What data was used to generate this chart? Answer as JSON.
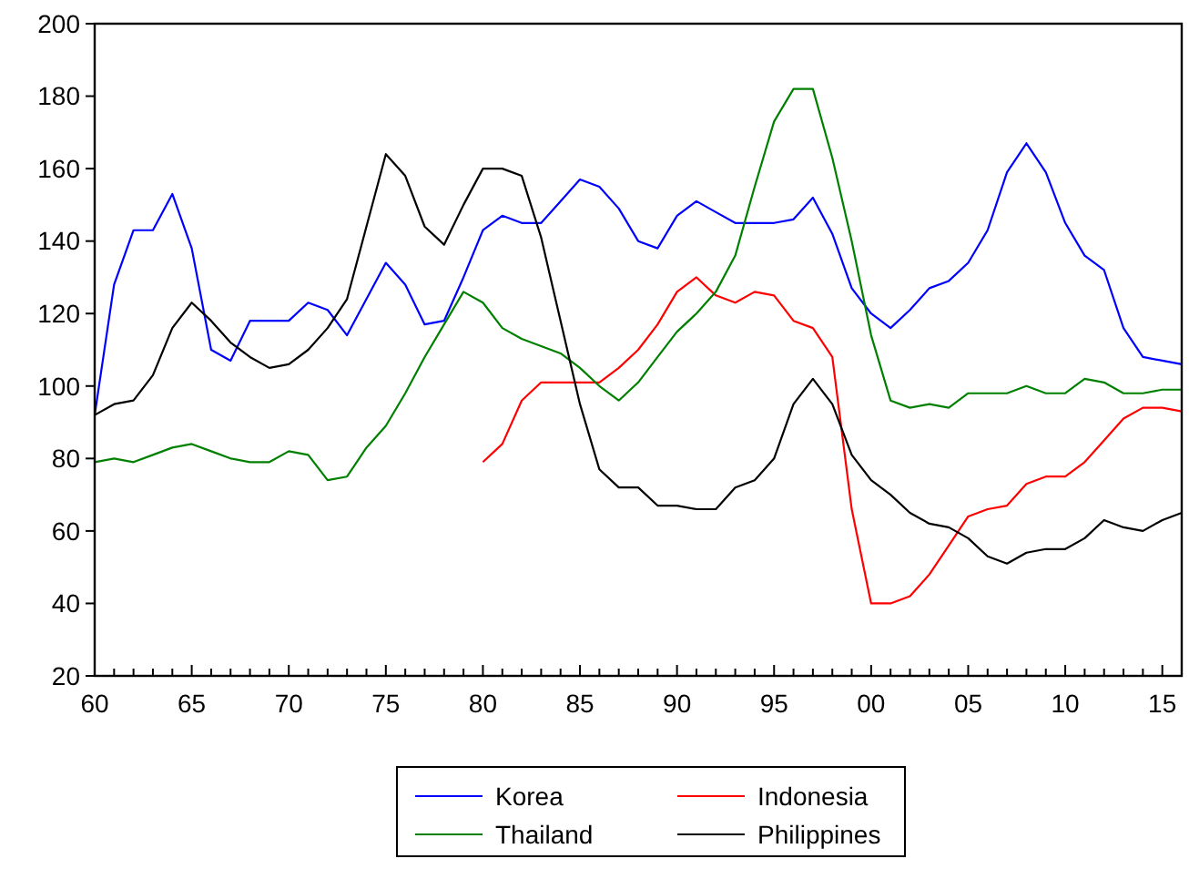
{
  "chart_data": {
    "type": "line",
    "x": [
      1960,
      1961,
      1962,
      1963,
      1964,
      1965,
      1966,
      1967,
      1968,
      1969,
      1970,
      1971,
      1972,
      1973,
      1974,
      1975,
      1976,
      1977,
      1978,
      1979,
      1980,
      1981,
      1982,
      1983,
      1984,
      1985,
      1986,
      1987,
      1988,
      1989,
      1990,
      1991,
      1992,
      1993,
      1994,
      1995,
      1996,
      1997,
      1998,
      1999,
      2000,
      2001,
      2002,
      2003,
      2004,
      2005,
      2006,
      2007,
      2008,
      2009,
      2010,
      2011,
      2012,
      2013,
      2014,
      2015,
      2016
    ],
    "xlim": [
      1960,
      2016
    ],
    "xticks": [
      {
        "value": 1960,
        "label": "60"
      },
      {
        "value": 1961,
        "label": null
      },
      {
        "value": 1962,
        "label": null
      },
      {
        "value": 1963,
        "label": null
      },
      {
        "value": 1964,
        "label": null
      },
      {
        "value": 1965,
        "label": "65"
      },
      {
        "value": 1966,
        "label": null
      },
      {
        "value": 1967,
        "label": null
      },
      {
        "value": 1968,
        "label": null
      },
      {
        "value": 1969,
        "label": null
      },
      {
        "value": 1970,
        "label": "70"
      },
      {
        "value": 1971,
        "label": null
      },
      {
        "value": 1972,
        "label": null
      },
      {
        "value": 1973,
        "label": null
      },
      {
        "value": 1974,
        "label": null
      },
      {
        "value": 1975,
        "label": "75"
      },
      {
        "value": 1976,
        "label": null
      },
      {
        "value": 1977,
        "label": null
      },
      {
        "value": 1978,
        "label": null
      },
      {
        "value": 1979,
        "label": null
      },
      {
        "value": 1980,
        "label": "80"
      },
      {
        "value": 1981,
        "label": null
      },
      {
        "value": 1982,
        "label": null
      },
      {
        "value": 1983,
        "label": null
      },
      {
        "value": 1984,
        "label": null
      },
      {
        "value": 1985,
        "label": "85"
      },
      {
        "value": 1986,
        "label": null
      },
      {
        "value": 1987,
        "label": null
      },
      {
        "value": 1988,
        "label": null
      },
      {
        "value": 1989,
        "label": null
      },
      {
        "value": 1990,
        "label": "90"
      },
      {
        "value": 1991,
        "label": null
      },
      {
        "value": 1992,
        "label": null
      },
      {
        "value": 1993,
        "label": null
      },
      {
        "value": 1994,
        "label": null
      },
      {
        "value": 1995,
        "label": "95"
      },
      {
        "value": 1996,
        "label": null
      },
      {
        "value": 1997,
        "label": null
      },
      {
        "value": 1998,
        "label": null
      },
      {
        "value": 1999,
        "label": null
      },
      {
        "value": 2000,
        "label": "00"
      },
      {
        "value": 2001,
        "label": null
      },
      {
        "value": 2002,
        "label": null
      },
      {
        "value": 2003,
        "label": null
      },
      {
        "value": 2004,
        "label": null
      },
      {
        "value": 2005,
        "label": "05"
      },
      {
        "value": 2006,
        "label": null
      },
      {
        "value": 2007,
        "label": null
      },
      {
        "value": 2008,
        "label": null
      },
      {
        "value": 2009,
        "label": null
      },
      {
        "value": 2010,
        "label": "10"
      },
      {
        "value": 2011,
        "label": null
      },
      {
        "value": 2012,
        "label": null
      },
      {
        "value": 2013,
        "label": null
      },
      {
        "value": 2014,
        "label": null
      },
      {
        "value": 2015,
        "label": "15"
      },
      {
        "value": 2016,
        "label": null
      }
    ],
    "ylim": [
      20,
      200
    ],
    "yticks": [
      20,
      40,
      60,
      80,
      100,
      120,
      140,
      160,
      180,
      200
    ],
    "grid": false,
    "legend": "bottom",
    "marker": "none",
    "line_style": "solid",
    "series": [
      {
        "name": "Korea",
        "color": "#0000ff",
        "values": [
          92,
          128,
          143,
          143,
          153,
          138,
          110,
          107,
          118,
          118,
          118,
          123,
          121,
          114,
          124,
          134,
          128,
          117,
          118,
          130,
          143,
          147,
          145,
          145,
          151,
          157,
          155,
          149,
          140,
          138,
          147,
          151,
          148,
          145,
          145,
          145,
          146,
          152,
          142,
          127,
          120,
          116,
          121,
          127,
          129,
          134,
          143,
          159,
          167,
          159,
          145,
          136,
          132,
          116,
          108,
          107,
          106
        ]
      },
      {
        "name": "Indonesia",
        "color": "#ff0000",
        "values": [
          null,
          null,
          null,
          null,
          null,
          null,
          null,
          null,
          null,
          null,
          null,
          null,
          null,
          null,
          null,
          null,
          null,
          null,
          null,
          null,
          79,
          84,
          96,
          101,
          101,
          101,
          101,
          105,
          110,
          117,
          126,
          130,
          125,
          123,
          126,
          125,
          118,
          116,
          108,
          66,
          40,
          40,
          42,
          48,
          56,
          64,
          66,
          67,
          73,
          75,
          75,
          79,
          85,
          91,
          94,
          94,
          93
        ]
      },
      {
        "name": "Thailand",
        "color": "#008000",
        "values": [
          79,
          80,
          79,
          81,
          83,
          84,
          82,
          80,
          79,
          79,
          82,
          81,
          74,
          75,
          83,
          89,
          98,
          108,
          117,
          126,
          123,
          116,
          113,
          111,
          109,
          105,
          100,
          96,
          101,
          108,
          115,
          120,
          126,
          136,
          155,
          173,
          182,
          182,
          163,
          140,
          114,
          96,
          94,
          95,
          94,
          98,
          98,
          98,
          100,
          98,
          98,
          102,
          101,
          98,
          98,
          99,
          99
        ]
      },
      {
        "name": "Philippines",
        "color": "#000000",
        "values": [
          92,
          95,
          96,
          103,
          116,
          123,
          118,
          112,
          108,
          105,
          106,
          110,
          116,
          124,
          144,
          164,
          158,
          144,
          139,
          150,
          160,
          160,
          158,
          141,
          118,
          95,
          77,
          72,
          72,
          67,
          67,
          66,
          66,
          72,
          74,
          80,
          95,
          102,
          95,
          81,
          74,
          70,
          65,
          62,
          61,
          58,
          53,
          51,
          54,
          55,
          55,
          58,
          63,
          61,
          60,
          63,
          65
        ]
      }
    ]
  }
}
